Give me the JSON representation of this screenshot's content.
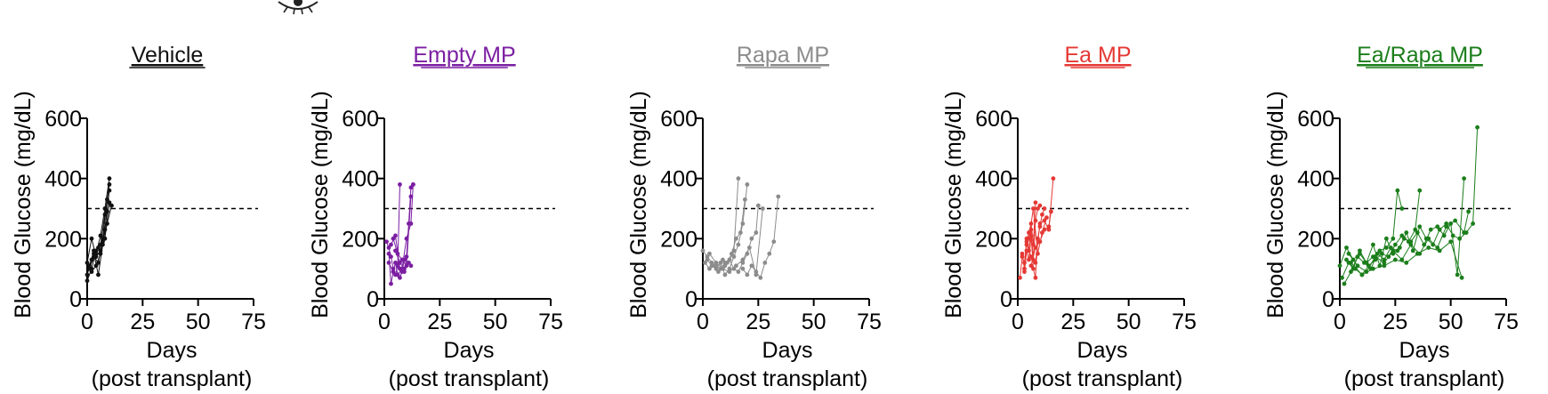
{
  "header": {
    "icon": "eye-icon"
  },
  "chart_data": [
    {
      "type": "line",
      "title": "Vehicle",
      "color": "#111111",
      "xlabel": "Days",
      "xlabel2": "(post transplant)",
      "ylabel": "Blood Glucose (mg/dL)",
      "xlim": [
        0,
        75
      ],
      "ylim": [
        0,
        600
      ],
      "xticks": [
        "0",
        "25",
        "50",
        "75"
      ],
      "yticks": [
        "0",
        "200",
        "400",
        "600"
      ],
      "threshold": 300,
      "series": [
        {
          "x": [
            0,
            2,
            4,
            6,
            8,
            10
          ],
          "y": [
            80,
            130,
            150,
            210,
            300,
            400
          ]
        },
        {
          "x": [
            0,
            2,
            4,
            6,
            8,
            10
          ],
          "y": [
            60,
            100,
            160,
            180,
            280,
            380
          ]
        },
        {
          "x": [
            1,
            3,
            5,
            7,
            9
          ],
          "y": [
            100,
            140,
            120,
            200,
            330
          ]
        },
        {
          "x": [
            1,
            3,
            5,
            7,
            9,
            11
          ],
          "y": [
            110,
            160,
            170,
            190,
            250,
            310
          ]
        },
        {
          "x": [
            2,
            4,
            6,
            8,
            10
          ],
          "y": [
            90,
            110,
            150,
            230,
            360
          ]
        },
        {
          "x": [
            0,
            2,
            4,
            6,
            8,
            10
          ],
          "y": [
            120,
            200,
            140,
            160,
            200,
            320
          ]
        },
        {
          "x": [
            3,
            5,
            7,
            9
          ],
          "y": [
            150,
            80,
            180,
            290
          ]
        }
      ]
    },
    {
      "type": "line",
      "title": "Empty MP",
      "color": "#7b1fa2",
      "xlabel": "Days",
      "xlabel2": "(post transplant)",
      "ylabel": "Blood Glucose (mg/dL)",
      "xlim": [
        0,
        75
      ],
      "ylim": [
        0,
        600
      ],
      "xticks": [
        "0",
        "25",
        "50",
        "75"
      ],
      "yticks": [
        "0",
        "200",
        "400",
        "600"
      ],
      "threshold": 300,
      "series": [
        {
          "x": [
            1,
            2,
            3,
            4,
            5,
            6,
            7
          ],
          "y": [
            190,
            170,
            140,
            100,
            80,
            110,
            380
          ]
        },
        {
          "x": [
            2,
            3,
            4,
            5,
            6,
            7,
            8,
            9
          ],
          "y": [
            150,
            50,
            90,
            120,
            80,
            70,
            90,
            130
          ]
        },
        {
          "x": [
            3,
            5,
            7,
            9,
            10,
            11,
            12,
            13
          ],
          "y": [
            180,
            210,
            100,
            90,
            140,
            250,
            370,
            380
          ]
        },
        {
          "x": [
            4,
            6,
            8,
            10,
            12
          ],
          "y": [
            200,
            150,
            130,
            110,
            340
          ]
        },
        {
          "x": [
            2,
            4,
            6,
            8,
            10,
            12,
            13
          ],
          "y": [
            120,
            90,
            80,
            100,
            200,
            250,
            380
          ]
        },
        {
          "x": [
            5,
            7,
            9,
            11,
            12
          ],
          "y": [
            160,
            120,
            100,
            120,
            110
          ]
        }
      ]
    },
    {
      "type": "line",
      "title": "Rapa MP",
      "color": "#8c8c8c",
      "xlabel": "Days",
      "xlabel2": "(post transplant)",
      "ylabel": "Blood Glucose (mg/dL)",
      "xlim": [
        0,
        75
      ],
      "ylim": [
        0,
        600
      ],
      "xticks": [
        "0",
        "25",
        "50",
        "75"
      ],
      "yticks": [
        "0",
        "200",
        "400",
        "600"
      ],
      "threshold": 300,
      "series": [
        {
          "x": [
            0,
            2,
            4,
            6,
            8,
            10,
            12,
            14,
            16
          ],
          "y": [
            160,
            140,
            120,
            110,
            100,
            120,
            130,
            160,
            400
          ]
        },
        {
          "x": [
            1,
            3,
            5,
            7,
            9,
            11,
            13,
            15,
            17,
            19
          ],
          "y": [
            120,
            100,
            110,
            90,
            130,
            120,
            150,
            200,
            220,
            330
          ]
        },
        {
          "x": [
            2,
            4,
            6,
            8,
            10,
            12,
            14,
            16,
            18,
            20
          ],
          "y": [
            130,
            110,
            100,
            120,
            80,
            100,
            140,
            180,
            250,
            380
          ]
        },
        {
          "x": [
            10,
            12,
            14,
            16,
            18,
            20,
            22,
            24,
            25
          ],
          "y": [
            110,
            130,
            100,
            90,
            120,
            150,
            200,
            220,
            310
          ]
        },
        {
          "x": [
            18,
            20,
            22,
            24,
            26,
            28,
            30,
            32,
            34
          ],
          "y": [
            100,
            80,
            110,
            90,
            70,
            120,
            150,
            190,
            340
          ]
        },
        {
          "x": [
            3,
            6,
            9,
            12,
            15,
            18,
            21,
            24,
            27
          ],
          "y": [
            150,
            120,
            100,
            90,
            110,
            130,
            170,
            80,
            300
          ]
        }
      ]
    },
    {
      "type": "line",
      "title": "Ea MP",
      "color": "#e53935",
      "xlabel": "Days",
      "xlabel2": "(post transplant)",
      "ylabel": "Blood Glucose (mg/dL)",
      "xlim": [
        0,
        75
      ],
      "ylim": [
        0,
        600
      ],
      "xticks": [
        "0",
        "25",
        "50",
        "75"
      ],
      "yticks": [
        "0",
        "200",
        "400",
        "600"
      ],
      "threshold": 300,
      "series": [
        {
          "x": [
            1,
            2,
            3,
            4,
            5,
            6,
            7,
            8
          ],
          "y": [
            70,
            140,
            120,
            190,
            220,
            250,
            180,
            320
          ]
        },
        {
          "x": [
            2,
            3,
            4,
            5,
            6,
            7,
            8,
            9,
            10
          ],
          "y": [
            150,
            100,
            200,
            160,
            230,
            130,
            260,
            300,
            310
          ]
        },
        {
          "x": [
            3,
            4,
            5,
            6,
            7,
            8,
            9,
            10,
            11,
            12
          ],
          "y": [
            90,
            160,
            130,
            210,
            100,
            70,
            200,
            240,
            280,
            300
          ]
        },
        {
          "x": [
            4,
            6,
            8,
            10,
            12,
            14,
            16
          ],
          "y": [
            180,
            140,
            120,
            250,
            260,
            230,
            400
          ]
        },
        {
          "x": [
            5,
            7,
            9,
            11,
            13
          ],
          "y": [
            200,
            300,
            150,
            220,
            270
          ]
        },
        {
          "x": [
            6,
            8,
            10,
            12,
            14,
            15
          ],
          "y": [
            110,
            170,
            190,
            230,
            240,
            290
          ]
        }
      ]
    },
    {
      "type": "line",
      "title": "Ea/Rapa MP",
      "color": "#1b7e1b",
      "xlabel": "Days",
      "xlabel2": "(post transplant)",
      "ylabel": "Blood Glucose (mg/dL)",
      "xlim": [
        0,
        75
      ],
      "ylim": [
        0,
        600
      ],
      "xticks": [
        "0",
        "25",
        "50",
        "75"
      ],
      "yticks": [
        "0",
        "200",
        "400",
        "600"
      ],
      "threshold": 300,
      "series": [
        {
          "x": [
            0,
            3,
            6,
            9,
            12,
            15,
            18,
            21,
            24,
            26,
            28
          ],
          "y": [
            110,
            170,
            130,
            150,
            120,
            140,
            160,
            170,
            200,
            360,
            300
          ]
        },
        {
          "x": [
            1,
            4,
            7,
            10,
            13,
            16,
            19,
            22,
            25,
            28,
            31,
            34,
            36
          ],
          "y": [
            70,
            120,
            100,
            80,
            110,
            130,
            150,
            140,
            180,
            210,
            190,
            230,
            360
          ]
        },
        {
          "x": [
            2,
            5,
            8,
            11,
            14,
            17,
            20,
            23,
            26,
            29,
            32,
            35,
            38,
            41,
            44,
            47,
            50,
            53,
            56
          ],
          "y": [
            50,
            90,
            140,
            120,
            100,
            150,
            130,
            170,
            160,
            200,
            190,
            220,
            180,
            230,
            240,
            210,
            250,
            80,
            400
          ]
        },
        {
          "x": [
            3,
            6,
            9,
            12,
            15,
            18,
            21,
            24,
            27,
            30,
            33,
            36,
            39,
            42,
            45,
            48,
            51,
            54,
            57,
            60,
            62
          ],
          "y": [
            130,
            100,
            160,
            120,
            180,
            110,
            200,
            150,
            170,
            220,
            160,
            240,
            200,
            180,
            230,
            250,
            210,
            200,
            220,
            250,
            570
          ]
        },
        {
          "x": [
            4,
            8,
            12,
            16,
            20,
            24,
            28,
            32,
            36,
            40,
            44,
            48,
            52,
            56,
            58
          ],
          "y": [
            150,
            110,
            90,
            140,
            120,
            160,
            130,
            180,
            150,
            200,
            170,
            240,
            260,
            220,
            290
          ]
        },
        {
          "x": [
            5,
            10,
            15,
            20,
            25,
            30,
            35,
            40,
            45,
            50,
            55
          ],
          "y": [
            120,
            80,
            100,
            110,
            130,
            120,
            150,
            170,
            160,
            190,
            70
          ]
        }
      ]
    }
  ]
}
